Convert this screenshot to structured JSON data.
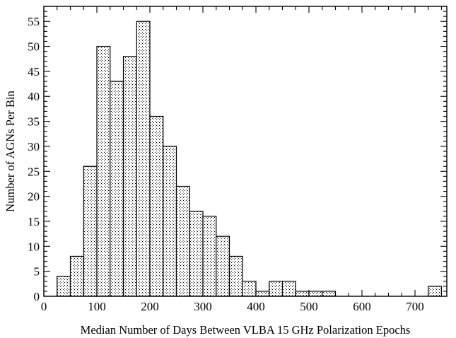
{
  "chart_data": {
    "type": "bar",
    "title": "",
    "xlabel": "Median Number of Days Between VLBA 15 GHz Polarization Epochs",
    "ylabel": "Number of AGNs Per Bin",
    "xlim": [
      0,
      760
    ],
    "ylim": [
      0,
      58
    ],
    "bin_width": 25,
    "bins": [
      {
        "x0": 25,
        "x1": 50,
        "value": 4
      },
      {
        "x0": 50,
        "x1": 75,
        "value": 8
      },
      {
        "x0": 75,
        "x1": 100,
        "value": 26
      },
      {
        "x0": 100,
        "x1": 125,
        "value": 50
      },
      {
        "x0": 125,
        "x1": 150,
        "value": 43
      },
      {
        "x0": 150,
        "x1": 175,
        "value": 48
      },
      {
        "x0": 175,
        "x1": 200,
        "value": 55
      },
      {
        "x0": 200,
        "x1": 225,
        "value": 36
      },
      {
        "x0": 225,
        "x1": 250,
        "value": 30
      },
      {
        "x0": 250,
        "x1": 275,
        "value": 22
      },
      {
        "x0": 275,
        "x1": 300,
        "value": 17
      },
      {
        "x0": 300,
        "x1": 325,
        "value": 16
      },
      {
        "x0": 325,
        "x1": 350,
        "value": 12
      },
      {
        "x0": 350,
        "x1": 375,
        "value": 8
      },
      {
        "x0": 375,
        "x1": 400,
        "value": 3
      },
      {
        "x0": 400,
        "x1": 425,
        "value": 1
      },
      {
        "x0": 425,
        "x1": 450,
        "value": 3
      },
      {
        "x0": 450,
        "x1": 475,
        "value": 3
      },
      {
        "x0": 475,
        "x1": 500,
        "value": 1
      },
      {
        "x0": 500,
        "x1": 525,
        "value": 1
      },
      {
        "x0": 525,
        "x1": 550,
        "value": 1
      },
      {
        "x0": 725,
        "x1": 750,
        "value": 2
      }
    ],
    "xticks_major": [
      0,
      100,
      200,
      300,
      400,
      500,
      600,
      700
    ],
    "xticks_major_labels": [
      "0",
      "100",
      "200",
      "300",
      "400",
      "500",
      "600",
      "700"
    ],
    "xtick_minor_step": 25,
    "yticks_major": [
      0,
      5,
      10,
      15,
      20,
      25,
      30,
      35,
      40,
      45,
      50,
      55
    ],
    "yticks_major_labels": [
      "0",
      "5",
      "10",
      "15",
      "20",
      "25",
      "30",
      "35",
      "40",
      "45",
      "50",
      "55"
    ],
    "ytick_minor_step": 1,
    "grid": false,
    "legend": "none",
    "bar_fill": "dotted",
    "colors": {
      "stroke": "#000000",
      "fill_dots": "#000000",
      "background": "#ffffff"
    }
  }
}
